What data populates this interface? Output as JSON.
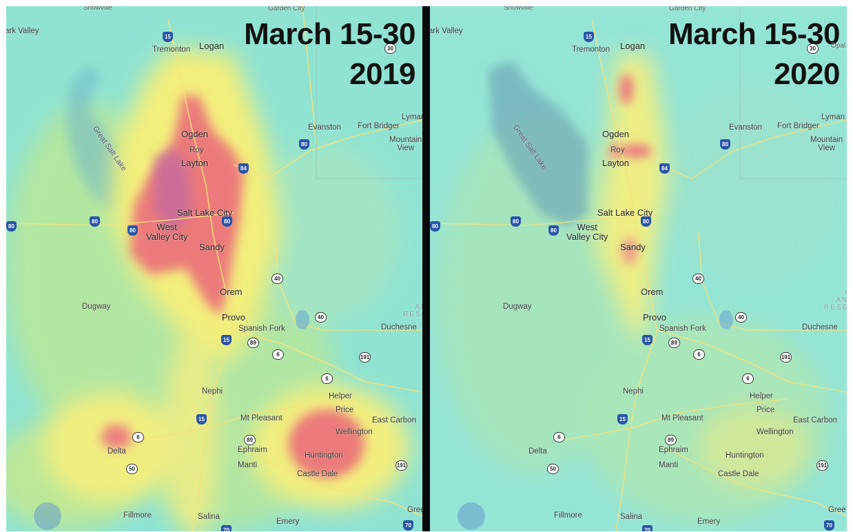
{
  "panels": [
    {
      "id": "2019",
      "title_line1": "March 15-30",
      "title_line2": "2019"
    },
    {
      "id": "2020",
      "title_line1": "March 15-30",
      "title_line2": "2020"
    }
  ],
  "map_labels": {
    "snowville": "Snowville",
    "garden_city": "Garden City",
    "park_valley": "ark Valley",
    "tremonton": "Tremonton",
    "logan": "Logan",
    "opal": "Opal",
    "lyman": "Lyman",
    "great_salt_lake": "Great Salt Lake",
    "evanston": "Evanston",
    "fort_bridger": "Fort Bridger",
    "mountain_view": "Mountain\nView",
    "ogden": "Ogden",
    "roy": "Roy",
    "layton": "Layton",
    "salt_lake_city": "Salt Lake City",
    "west_valley_city": "West\nValley City",
    "sandy": "Sandy",
    "orem": "Orem",
    "provo": "Provo",
    "spanish_fork": "Spanish Fork",
    "dugway": "Dugway",
    "duchesne": "Duchesne",
    "uinta_reservation": "UI\nAND\nRESER",
    "nephi": "Nephi",
    "helper": "Helper",
    "price": "Price",
    "east_carbon": "East Carbon",
    "wellington": "Wellington",
    "mt_pleasant": "Mt Pleasant",
    "delta": "Delta",
    "ephraim": "Ephraim",
    "manti": "Manti",
    "huntington": "Huntington",
    "castle_dale": "Castle Dale",
    "fillmore": "Fillmore",
    "salina": "Salina",
    "emery": "Emery",
    "green_river": "Gree"
  },
  "highway_shields": [
    "15",
    "30",
    "80",
    "84",
    "40",
    "89",
    "6",
    "191",
    "50",
    "70"
  ],
  "colors": {
    "low": "#8fe3d0",
    "mid": "#f4f07a",
    "high": "#ee7b7b",
    "very_high": "#c96a9a"
  }
}
